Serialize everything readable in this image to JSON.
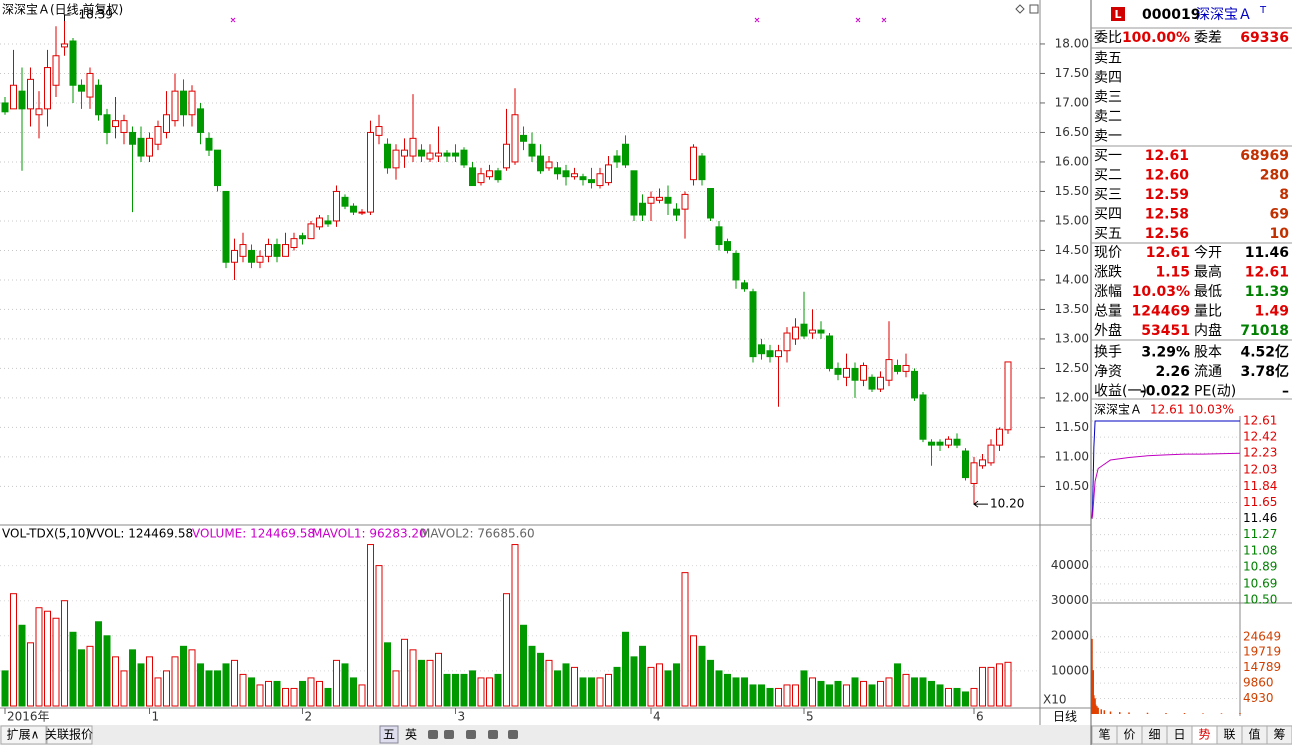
{
  "chart": {
    "type": "candlestick",
    "title": "深深宝Ａ(日线,前复权)",
    "high_label": "18.39",
    "low_label": "10.20",
    "ylim": [
      9.88,
      18.44
    ],
    "yticks": [
      {
        "value": 10.5,
        "label": "10.50"
      },
      {
        "value": 11,
        "label": "11.00"
      },
      {
        "value": 11.5,
        "label": "11.50"
      },
      {
        "value": 12,
        "label": "12.00"
      },
      {
        "value": 12.5,
        "label": "12.50"
      },
      {
        "value": 13,
        "label": "13.00"
      },
      {
        "value": 13.5,
        "label": "13.50"
      },
      {
        "value": 14,
        "label": "14.00"
      },
      {
        "value": 14.5,
        "label": "14.50"
      },
      {
        "value": 15,
        "label": "15.00"
      },
      {
        "value": 15.5,
        "label": "15.50"
      },
      {
        "value": 16,
        "label": "16.00"
      },
      {
        "value": 16.5,
        "label": "16.50"
      },
      {
        "value": 17,
        "label": "17.00"
      },
      {
        "value": 17.5,
        "label": "17.50"
      },
      {
        "value": 18,
        "label": "18.00"
      }
    ],
    "xticks": [
      {
        "value": 0,
        "label": "2016年"
      },
      {
        "value": 17,
        "label": "1"
      },
      {
        "value": 35,
        "label": "2"
      },
      {
        "value": 53,
        "label": "3"
      },
      {
        "value": 76,
        "label": "4"
      },
      {
        "value": 94,
        "label": "5"
      },
      {
        "value": 114,
        "label": "6"
      }
    ],
    "candles": [
      {
        "o": 17.0,
        "c": 16.85,
        "h": 17.1,
        "l": 16.8
      },
      {
        "o": 16.9,
        "c": 17.3,
        "h": 17.9,
        "l": 16.9
      },
      {
        "o": 17.2,
        "c": 16.9,
        "h": 17.6,
        "l": 15.85
      },
      {
        "o": 16.9,
        "c": 17.4,
        "h": 17.6,
        "l": 16.6
      },
      {
        "o": 16.8,
        "c": 16.9,
        "h": 17.2,
        "l": 16.4
      },
      {
        "o": 16.9,
        "c": 17.6,
        "h": 17.9,
        "l": 16.6
      },
      {
        "o": 17.3,
        "c": 17.8,
        "h": 18.3,
        "l": 17.1
      },
      {
        "o": 17.95,
        "c": 18.0,
        "h": 18.39,
        "l": 17.8
      },
      {
        "o": 18.05,
        "c": 17.3,
        "h": 18.1,
        "l": 17.0
      },
      {
        "o": 17.3,
        "c": 17.2,
        "h": 17.4,
        "l": 16.9
      },
      {
        "o": 17.1,
        "c": 17.5,
        "h": 17.6,
        "l": 16.9
      },
      {
        "o": 17.3,
        "c": 16.8,
        "h": 17.4,
        "l": 16.7
      },
      {
        "o": 16.8,
        "c": 16.5,
        "h": 16.9,
        "l": 16.3
      },
      {
        "o": 16.6,
        "c": 16.7,
        "h": 17.1,
        "l": 16.4
      },
      {
        "o": 16.5,
        "c": 16.7,
        "h": 16.8,
        "l": 16.3
      },
      {
        "o": 16.5,
        "c": 16.3,
        "h": 16.6,
        "l": 15.15
      },
      {
        "o": 16.4,
        "c": 16.1,
        "h": 16.6,
        "l": 16.0
      },
      {
        "o": 16.1,
        "c": 16.4,
        "h": 16.5,
        "l": 16.0
      },
      {
        "o": 16.3,
        "c": 16.6,
        "h": 16.7,
        "l": 16.2
      },
      {
        "o": 16.5,
        "c": 16.8,
        "h": 17.2,
        "l": 16.4
      },
      {
        "o": 16.7,
        "c": 17.2,
        "h": 17.5,
        "l": 16.6
      },
      {
        "o": 17.2,
        "c": 16.8,
        "h": 17.4,
        "l": 16.6
      },
      {
        "o": 16.8,
        "c": 17.2,
        "h": 17.3,
        "l": 16.6
      },
      {
        "o": 16.9,
        "c": 16.5,
        "h": 17.0,
        "l": 16.3
      },
      {
        "o": 16.4,
        "c": 16.2,
        "h": 16.5,
        "l": 16.1
      },
      {
        "o": 16.2,
        "c": 15.6,
        "h": 16.2,
        "l": 15.5
      },
      {
        "o": 15.5,
        "c": 14.3,
        "h": 15.5,
        "l": 14.2
      },
      {
        "o": 14.3,
        "c": 14.5,
        "h": 14.7,
        "l": 14.0
      },
      {
        "o": 14.4,
        "c": 14.6,
        "h": 14.8,
        "l": 14.3
      },
      {
        "o": 14.5,
        "c": 14.3,
        "h": 14.6,
        "l": 14.2
      },
      {
        "o": 14.3,
        "c": 14.4,
        "h": 14.5,
        "l": 14.2
      },
      {
        "o": 14.4,
        "c": 14.6,
        "h": 14.7,
        "l": 14.3
      },
      {
        "o": 14.6,
        "c": 14.4,
        "h": 14.7,
        "l": 14.3
      },
      {
        "o": 14.4,
        "c": 14.6,
        "h": 14.8,
        "l": 14.4
      },
      {
        "o": 14.55,
        "c": 14.7,
        "h": 14.8,
        "l": 14.5
      },
      {
        "o": 14.75,
        "c": 14.7,
        "h": 14.8,
        "l": 14.6
      },
      {
        "o": 14.7,
        "c": 14.95,
        "h": 15.0,
        "l": 14.7
      },
      {
        "o": 14.9,
        "c": 15.05,
        "h": 15.1,
        "l": 14.85
      },
      {
        "o": 15.0,
        "c": 14.95,
        "h": 15.1,
        "l": 14.9
      },
      {
        "o": 15.0,
        "c": 15.5,
        "h": 15.6,
        "l": 14.9
      },
      {
        "o": 15.4,
        "c": 15.25,
        "h": 15.45,
        "l": 15.2
      },
      {
        "o": 15.25,
        "c": 15.15,
        "h": 15.3,
        "l": 15.1
      },
      {
        "o": 15.15,
        "c": 15.15,
        "h": 15.2,
        "l": 15.1
      },
      {
        "o": 15.15,
        "c": 16.5,
        "h": 16.7,
        "l": 15.1
      },
      {
        "o": 16.45,
        "c": 16.6,
        "h": 16.8,
        "l": 16.3
      },
      {
        "o": 16.3,
        "c": 15.9,
        "h": 16.4,
        "l": 15.8
      },
      {
        "o": 15.9,
        "c": 16.2,
        "h": 16.3,
        "l": 15.7
      },
      {
        "o": 16.1,
        "c": 16.2,
        "h": 16.4,
        "l": 15.9
      },
      {
        "o": 16.1,
        "c": 16.4,
        "h": 17.15,
        "l": 16.0
      },
      {
        "o": 16.2,
        "c": 16.1,
        "h": 16.3,
        "l": 16.0
      },
      {
        "o": 16.05,
        "c": 16.15,
        "h": 16.3,
        "l": 16.0
      },
      {
        "o": 16.1,
        "c": 16.15,
        "h": 16.6,
        "l": 16.0
      },
      {
        "o": 16.15,
        "c": 16.1,
        "h": 16.2,
        "l": 16.0
      },
      {
        "o": 16.15,
        "c": 16.1,
        "h": 16.3,
        "l": 16.0
      },
      {
        "o": 16.2,
        "c": 15.95,
        "h": 16.25,
        "l": 15.9
      },
      {
        "o": 15.9,
        "c": 15.6,
        "h": 16.0,
        "l": 15.6
      },
      {
        "o": 15.65,
        "c": 15.8,
        "h": 15.9,
        "l": 15.6
      },
      {
        "o": 15.75,
        "c": 15.85,
        "h": 15.95,
        "l": 15.7
      },
      {
        "o": 15.85,
        "c": 15.7,
        "h": 15.9,
        "l": 15.65
      },
      {
        "o": 15.9,
        "c": 16.3,
        "h": 16.9,
        "l": 15.85
      },
      {
        "o": 16.0,
        "c": 16.8,
        "h": 17.25,
        "l": 15.95
      },
      {
        "o": 16.45,
        "c": 16.35,
        "h": 16.6,
        "l": 16.2
      },
      {
        "o": 16.3,
        "c": 16.1,
        "h": 16.5,
        "l": 16.0
      },
      {
        "o": 16.1,
        "c": 15.85,
        "h": 16.3,
        "l": 15.8
      },
      {
        "o": 15.9,
        "c": 16.0,
        "h": 16.1,
        "l": 15.85
      },
      {
        "o": 15.9,
        "c": 15.8,
        "h": 16.0,
        "l": 15.7
      },
      {
        "o": 15.85,
        "c": 15.75,
        "h": 15.95,
        "l": 15.6
      },
      {
        "o": 15.75,
        "c": 15.8,
        "h": 15.9,
        "l": 15.7
      },
      {
        "o": 15.75,
        "c": 15.7,
        "h": 15.8,
        "l": 15.6
      },
      {
        "o": 15.7,
        "c": 15.65,
        "h": 15.9,
        "l": 15.55
      },
      {
        "o": 15.6,
        "c": 15.8,
        "h": 15.9,
        "l": 15.55
      },
      {
        "o": 15.65,
        "c": 15.95,
        "h": 16.1,
        "l": 15.6
      },
      {
        "o": 16.1,
        "c": 16.0,
        "h": 16.2,
        "l": 15.9
      },
      {
        "o": 16.3,
        "c": 15.95,
        "h": 16.45,
        "l": 15.9
      },
      {
        "o": 15.85,
        "c": 15.1,
        "h": 15.85,
        "l": 15.0
      },
      {
        "o": 15.3,
        "c": 15.1,
        "h": 15.45,
        "l": 15.0
      },
      {
        "o": 15.3,
        "c": 15.4,
        "h": 15.5,
        "l": 15.0
      },
      {
        "o": 15.35,
        "c": 15.4,
        "h": 15.55,
        "l": 15.3
      },
      {
        "o": 15.4,
        "c": 15.3,
        "h": 15.6,
        "l": 15.1
      },
      {
        "o": 15.2,
        "c": 15.1,
        "h": 15.3,
        "l": 15.0
      },
      {
        "o": 15.2,
        "c": 15.45,
        "h": 15.5,
        "l": 14.7
      },
      {
        "o": 15.7,
        "c": 16.25,
        "h": 16.3,
        "l": 15.6
      },
      {
        "o": 16.1,
        "c": 15.7,
        "h": 16.15,
        "l": 15.6
      },
      {
        "o": 15.55,
        "c": 15.05,
        "h": 15.55,
        "l": 15.0
      },
      {
        "o": 14.9,
        "c": 14.6,
        "h": 15.0,
        "l": 14.5
      },
      {
        "o": 14.65,
        "c": 14.5,
        "h": 14.7,
        "l": 14.45
      },
      {
        "o": 14.45,
        "c": 14.0,
        "h": 14.5,
        "l": 13.85
      },
      {
        "o": 13.95,
        "c": 13.85,
        "h": 14.0,
        "l": 13.8
      },
      {
        "o": 13.8,
        "c": 12.7,
        "h": 13.85,
        "l": 12.6
      },
      {
        "o": 12.9,
        "c": 12.75,
        "h": 13.0,
        "l": 12.65
      },
      {
        "o": 12.8,
        "c": 12.7,
        "h": 12.9,
        "l": 12.6
      },
      {
        "o": 12.7,
        "c": 12.8,
        "h": 12.9,
        "l": 11.85
      },
      {
        "o": 12.8,
        "c": 13.1,
        "h": 13.2,
        "l": 12.6
      },
      {
        "o": 13.0,
        "c": 13.2,
        "h": 13.35,
        "l": 12.9
      },
      {
        "o": 13.25,
        "c": 13.05,
        "h": 13.8,
        "l": 13.0
      },
      {
        "o": 13.1,
        "c": 13.15,
        "h": 13.5,
        "l": 13.0
      },
      {
        "o": 13.15,
        "c": 13.1,
        "h": 13.3,
        "l": 13.0
      },
      {
        "o": 13.05,
        "c": 12.5,
        "h": 13.1,
        "l": 12.45
      },
      {
        "o": 12.5,
        "c": 12.4,
        "h": 12.6,
        "l": 12.3
      },
      {
        "o": 12.35,
        "c": 12.5,
        "h": 12.75,
        "l": 12.2
      },
      {
        "o": 12.5,
        "c": 12.3,
        "h": 12.6,
        "l": 12.0
      },
      {
        "o": 12.3,
        "c": 12.55,
        "h": 12.6,
        "l": 12.2
      },
      {
        "o": 12.35,
        "c": 12.15,
        "h": 12.4,
        "l": 12.1
      },
      {
        "o": 12.15,
        "c": 12.35,
        "h": 12.45,
        "l": 12.1
      },
      {
        "o": 12.3,
        "c": 12.65,
        "h": 13.3,
        "l": 12.2
      },
      {
        "o": 12.55,
        "c": 12.45,
        "h": 12.65,
        "l": 12.4
      },
      {
        "o": 12.45,
        "c": 12.55,
        "h": 12.75,
        "l": 12.35
      },
      {
        "o": 12.45,
        "c": 12.0,
        "h": 12.5,
        "l": 11.95
      },
      {
        "o": 12.05,
        "c": 11.3,
        "h": 12.1,
        "l": 11.25
      },
      {
        "o": 11.25,
        "c": 11.2,
        "h": 11.3,
        "l": 10.85
      },
      {
        "o": 11.25,
        "c": 11.2,
        "h": 11.3,
        "l": 11.1
      },
      {
        "o": 11.2,
        "c": 11.3,
        "h": 11.35,
        "l": 11.15
      },
      {
        "o": 11.3,
        "c": 11.2,
        "h": 11.4,
        "l": 11.15
      },
      {
        "o": 11.1,
        "c": 10.65,
        "h": 11.15,
        "l": 10.6
      },
      {
        "o": 10.55,
        "c": 10.9,
        "h": 11.0,
        "l": 10.2
      },
      {
        "o": 10.85,
        "c": 10.95,
        "h": 11.05,
        "l": 10.8
      },
      {
        "o": 10.9,
        "c": 11.2,
        "h": 11.3,
        "l": 10.85
      },
      {
        "o": 11.2,
        "c": 11.47,
        "h": 11.5,
        "l": 11.1
      },
      {
        "o": 11.46,
        "c": 12.61,
        "h": 12.61,
        "l": 11.39
      }
    ]
  },
  "volume": {
    "type": "bar",
    "name": "VOL-TDX(5,10)",
    "vvol": "VVOL: 124469.58",
    "vol_text": "VOLUME: 124469.58",
    "mavol1": "MAVOL1: 96283.20",
    "mavol2": "MAVOL2: 76685.60",
    "scale": "X10",
    "ylim": [
      0,
      51000
    ],
    "yticks": [
      10000,
      20000,
      30000,
      40000
    ],
    "values": [
      10000,
      32000,
      23000,
      18000,
      28000,
      27000,
      25000,
      30000,
      21000,
      16000,
      17000,
      24000,
      20000,
      14000,
      10000,
      16000,
      12000,
      14000,
      8000,
      10000,
      14000,
      17000,
      16000,
      12000,
      10000,
      10000,
      12000,
      13000,
      9000,
      8000,
      6000,
      7000,
      7000,
      5000,
      5000,
      7000,
      8000,
      7000,
      5000,
      13000,
      12000,
      8000,
      6000,
      46000,
      40000,
      18000,
      10000,
      19000,
      16000,
      13000,
      13000,
      15000,
      9000,
      9000,
      9000,
      10000,
      8000,
      8000,
      9000,
      32000,
      46000,
      23000,
      17000,
      15000,
      13000,
      10000,
      12000,
      11000,
      8000,
      8000,
      8000,
      9000,
      11000,
      21000,
      14000,
      17000,
      11000,
      12000,
      10000,
      12000,
      38000,
      20000,
      17000,
      13000,
      10000,
      9000,
      8000,
      8000,
      6000,
      6000,
      5000,
      5000,
      6000,
      6000,
      10000,
      8000,
      7000,
      6000,
      7000,
      6000,
      8000,
      7000,
      6000,
      7000,
      8000,
      12000,
      9000,
      8000,
      8000,
      7000,
      6000,
      5000,
      5000,
      4000,
      5000,
      11000,
      11000,
      12000,
      12447
    ]
  },
  "quote": {
    "badge": "L",
    "code": "000019",
    "name": "深深宝Ａ",
    "flag": "T",
    "ratio": [
      {
        "label": "委比",
        "value": "100.00%"
      },
      {
        "label": "委差",
        "value": "69336"
      }
    ],
    "sell": [
      "卖五",
      "卖四",
      "卖三",
      "卖二",
      "卖一"
    ],
    "buy": [
      {
        "label": "买一",
        "price": "12.61",
        "volume": "68969"
      },
      {
        "label": "买二",
        "price": "12.60",
        "volume": "280"
      },
      {
        "label": "买三",
        "price": "12.59",
        "volume": "8"
      },
      {
        "label": "买四",
        "price": "12.58",
        "volume": "69"
      },
      {
        "label": "买五",
        "price": "12.56",
        "volume": "10"
      }
    ],
    "stats": [
      {
        "label": "现价",
        "value": "12.61",
        "color": "#e00000"
      },
      {
        "label": "今开",
        "value": "11.46",
        "color": "#000000"
      },
      {
        "label": "涨跌",
        "value": "1.15",
        "color": "#e00000"
      },
      {
        "label": "最高",
        "value": "12.61",
        "color": "#e00000"
      },
      {
        "label": "涨幅",
        "value": "10.03%",
        "color": "#e00000"
      },
      {
        "label": "最低",
        "value": "11.39",
        "color": "#008000"
      },
      {
        "label": "总量",
        "value": "124469",
        "color": "#e00000"
      },
      {
        "label": "量比",
        "value": "1.49",
        "color": "#e00000"
      },
      {
        "label": "外盘",
        "value": "53451",
        "color": "#e00000"
      },
      {
        "label": "内盘",
        "value": "71018",
        "color": "#008000"
      },
      {
        "label": "换手",
        "value": "3.29%",
        "color": "#000000"
      },
      {
        "label": "股本",
        "value": "4.52亿",
        "color": "#000000"
      },
      {
        "label": "净资",
        "value": "2.26",
        "color": "#000000"
      },
      {
        "label": "流通",
        "value": "3.78亿",
        "color": "#000000"
      },
      {
        "label": "收益(一)",
        "value": "-0.022",
        "color": "#000000"
      },
      {
        "label": "PE(动)",
        "value": "–",
        "color": "#000000"
      }
    ]
  },
  "intraday": {
    "type": "line",
    "name": "深深宝Ａ",
    "price": "12.61",
    "pct": "10.03%",
    "xlim": [
      0,
      240
    ],
    "ylim": [
      10.5,
      12.61
    ],
    "yticks": [
      12.61,
      12.42,
      12.23,
      12.03,
      11.84,
      11.65,
      11.46,
      11.27,
      11.08,
      10.89,
      10.69,
      {
        "value": 10.5,
        "label": "10.50"
      }
    ],
    "x": [
      0,
      1,
      3,
      5,
      10,
      30,
      60,
      90,
      120,
      150,
      180,
      240
    ],
    "series": [
      {
        "color": "#0000c0",
        "values": [
          11.46,
          11.6,
          12.3,
          12.61,
          12.61,
          12.61,
          12.61,
          12.61,
          12.61,
          12.61,
          12.61,
          12.61
        ]
      },
      {
        "color": "#c000c0",
        "values": [
          11.46,
          11.5,
          11.7,
          11.9,
          12.05,
          12.15,
          12.18,
          12.2,
          12.21,
          12.22,
          12.22,
          12.23
        ]
      }
    ],
    "vlim": [
      0,
      34800
    ],
    "vticks": [
      24649,
      19719,
      14789,
      9860,
      4930
    ],
    "vol_x": [
      0,
      1,
      2,
      3,
      4,
      5,
      6,
      8,
      10,
      15,
      20,
      30,
      45,
      60,
      90,
      120,
      150,
      180,
      210,
      240
    ],
    "vol": [
      24000,
      9000,
      14000,
      6000,
      4000,
      5000,
      3000,
      2500,
      2000,
      1500,
      1200,
      800,
      600,
      500,
      400,
      300,
      300,
      200,
      200,
      300
    ]
  },
  "footer": {
    "left_tabs": [
      "扩展∧",
      "关联报价"
    ],
    "tools": [
      "五",
      "英"
    ],
    "period": "日线",
    "right_tabs": [
      "笔",
      "价",
      "细",
      "日",
      "势",
      "联",
      "值",
      "筹"
    ]
  }
}
